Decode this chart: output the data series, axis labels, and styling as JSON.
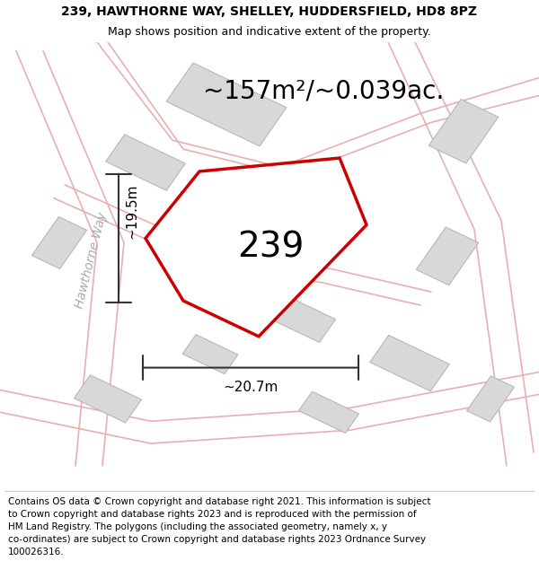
{
  "title_line1": "239, HAWTHORNE WAY, SHELLEY, HUDDERSFIELD, HD8 8PZ",
  "title_line2": "Map shows position and indicative extent of the property.",
  "footer_lines": [
    "Contains OS data © Crown copyright and database right 2021. This information is subject",
    "to Crown copyright and database rights 2023 and is reproduced with the permission of",
    "HM Land Registry. The polygons (including the associated geometry, namely x, y",
    "co-ordinates) are subject to Crown copyright and database rights 2023 Ordnance Survey",
    "100026316."
  ],
  "area_label": "~157m²/~0.039ac.",
  "plot_number": "239",
  "width_label": "~20.7m",
  "height_label": "~19.5m",
  "road_label": "Hawthorne Way",
  "map_bg": "#eeecec",
  "plot_outline_color": "#cc0000",
  "building_fill": "#d8d8d8",
  "building_stroke": "#b8b8b8",
  "road_color": "#e8b0b0",
  "dim_line_color": "#333333",
  "title_fontsize": 10,
  "subtitle_fontsize": 9,
  "footer_fontsize": 7.5,
  "area_fontsize": 20,
  "number_fontsize": 28,
  "dim_fontsize": 11,
  "road_label_fontsize": 10
}
